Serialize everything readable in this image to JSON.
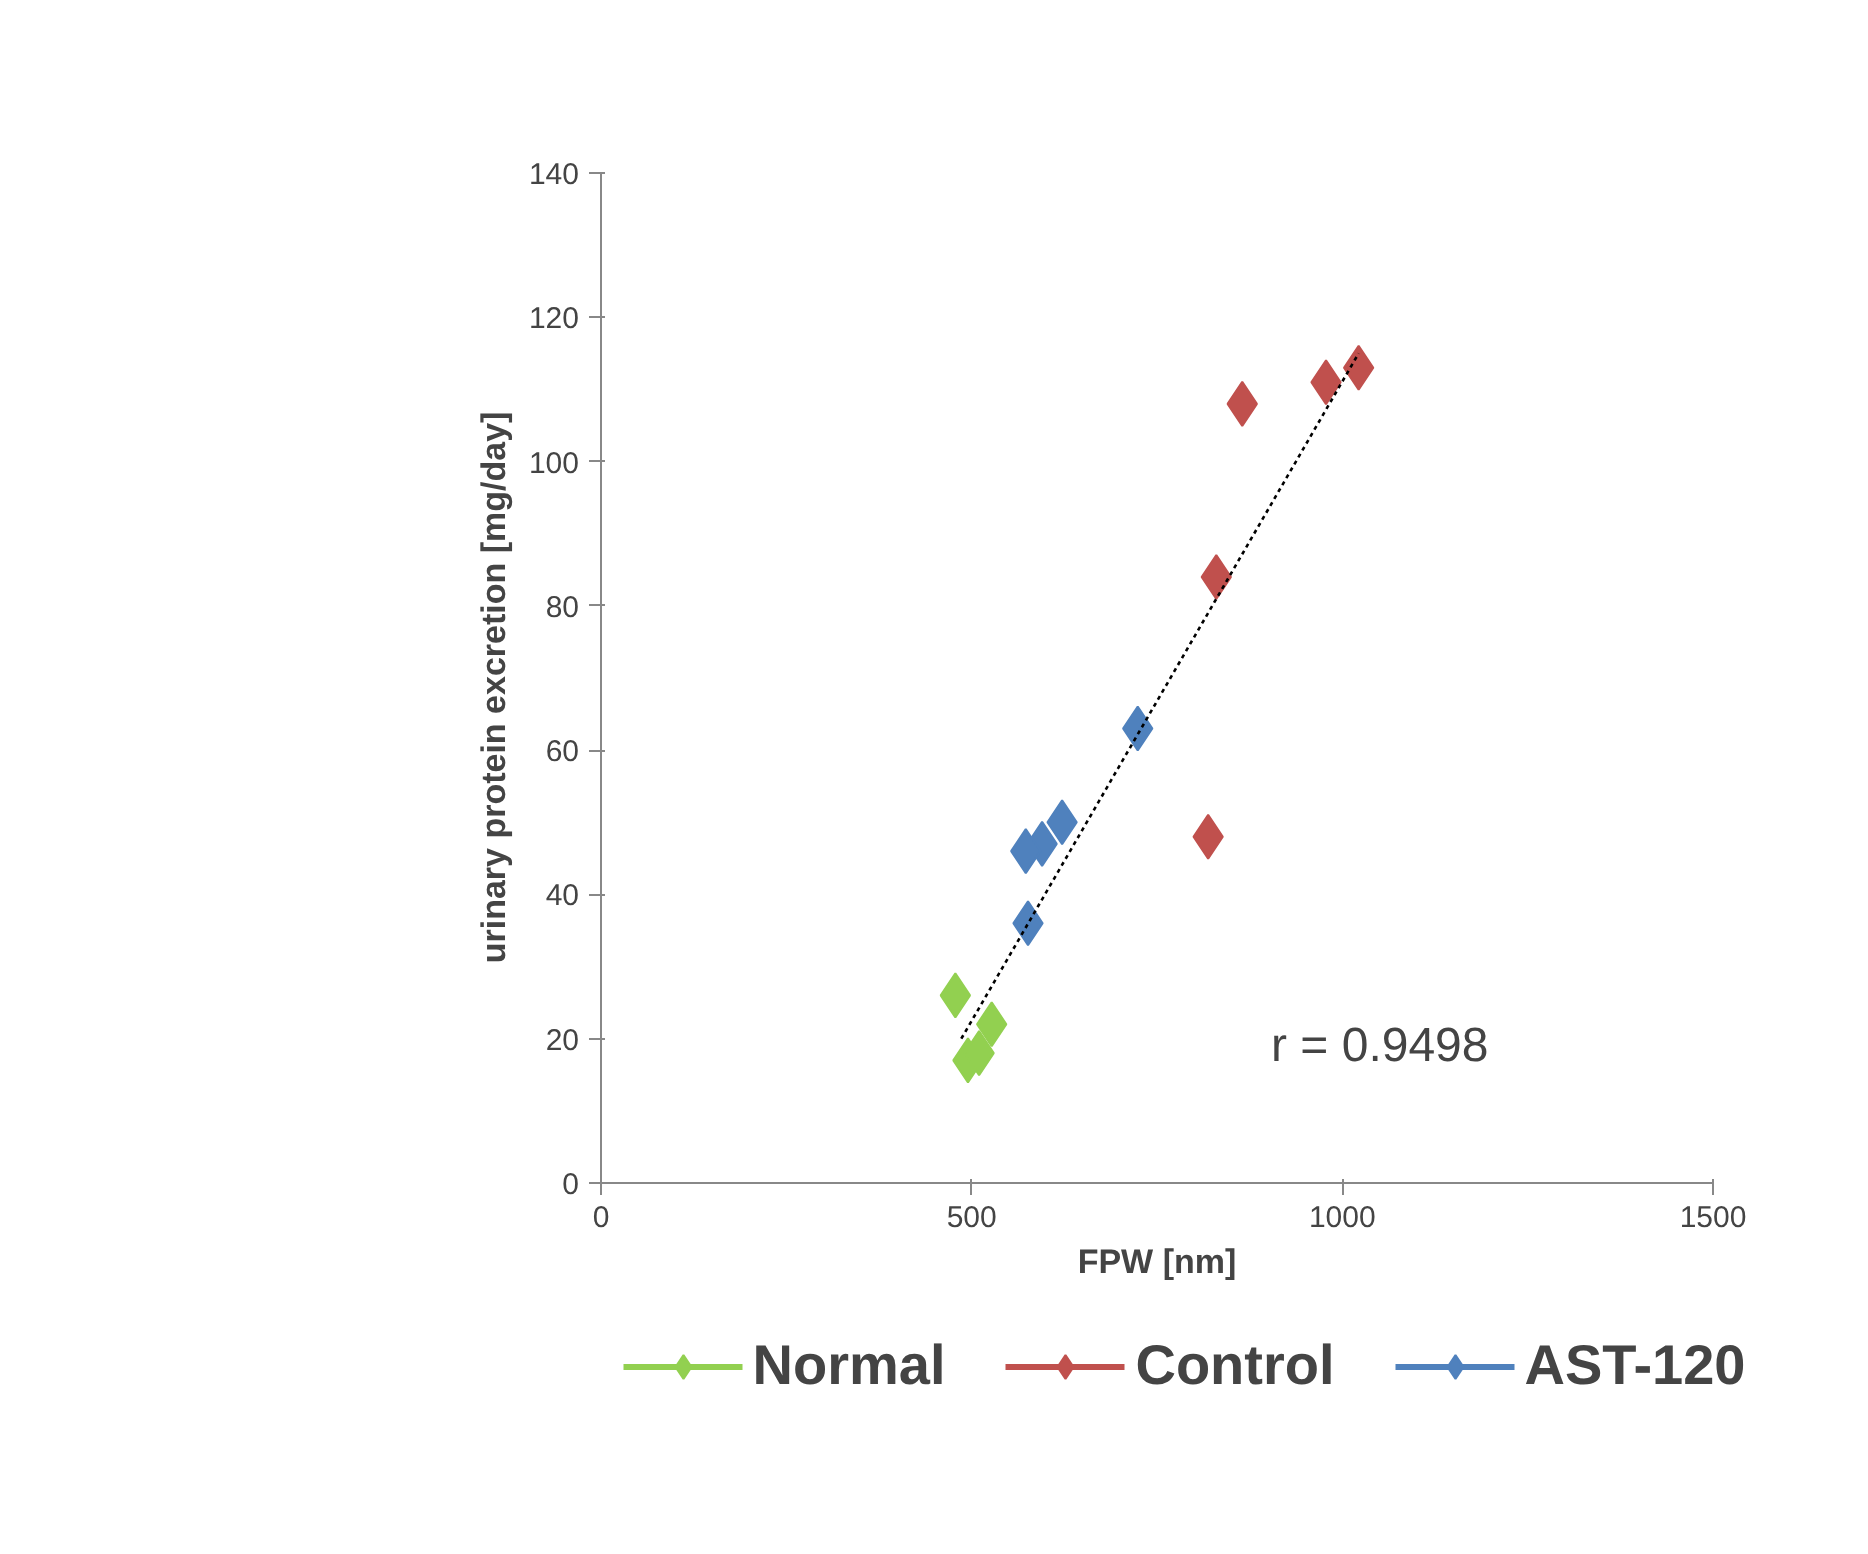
{
  "chart_data": {
    "type": "scatter",
    "xlabel": "FPW [nm]",
    "ylabel": "urinary protein excretion   [mg/day]",
    "xlim": [
      0,
      1500
    ],
    "ylim": [
      0,
      140
    ],
    "xticks": [
      0,
      500,
      1000,
      1500
    ],
    "yticks": [
      0,
      20,
      40,
      60,
      80,
      100,
      120,
      140
    ],
    "grid": false,
    "legend": "bottom",
    "marker": "diamond",
    "series": [
      {
        "name": "Normal",
        "color": "#92d050",
        "x": [
          478,
          527,
          495,
          510
        ],
        "values": [
          26,
          22,
          17,
          18
        ]
      },
      {
        "name": "Control",
        "color": "#c0504d",
        "x": [
          865,
          978,
          1022,
          830,
          819
        ],
        "values": [
          108,
          111,
          113,
          84,
          48
        ]
      },
      {
        "name": "AST-120",
        "color": "#4f81bd",
        "x": [
          724,
          622,
          595,
          573,
          576
        ],
        "values": [
          63,
          50,
          47,
          46,
          36
        ]
      },
      {
        "type": "line",
        "color": "#000000",
        "line_style": "dotted",
        "marker": "none",
        "x": [
          486,
          1022
        ],
        "values": [
          20,
          115
        ]
      }
    ],
    "annotations": [
      "r = 0.9498"
    ]
  }
}
